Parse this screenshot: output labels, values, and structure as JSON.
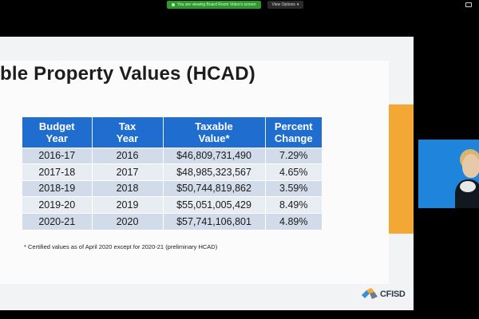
{
  "top_bar": {
    "sharing_label": "You are viewing Board Room Video's screen",
    "view_options_label": "View Options",
    "view_options_caret": "▾"
  },
  "slide": {
    "title": "ble Property Values (HCAD)",
    "table": {
      "headers": [
        [
          "Budget",
          "Year"
        ],
        [
          "Tax",
          "Year"
        ],
        [
          "Taxable",
          "Value*"
        ],
        [
          "Percent",
          "Change"
        ]
      ],
      "rows": [
        [
          "2016-17",
          "2016",
          "$46,809,731,490",
          "7.29%"
        ],
        [
          "2017-18",
          "2017",
          "$48,985,323,567",
          "4.65%"
        ],
        [
          "2018-19",
          "2018",
          "$50,744,819,862",
          "3.59%"
        ],
        [
          "2019-20",
          "2019",
          "$55,051,005,429",
          "8.49%"
        ],
        [
          "2020-21",
          "2020",
          "$57,741,106,801",
          "4.89%"
        ]
      ]
    },
    "footnote": "* Certified values as of April 2020 except for 2020-21 (preliminary HCAD)",
    "logo_text": "CFISD"
  },
  "colors": {
    "table_header": "#1f6ecf",
    "row_odd": "#d2dbe9",
    "row_even": "#e8ecf3",
    "accent_orange": "#f3a835",
    "webcam_bg": "#1f84dc"
  }
}
